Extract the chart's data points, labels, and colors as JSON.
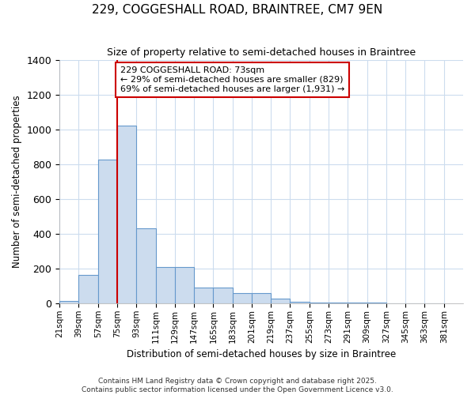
{
  "title": "229, COGGESHALL ROAD, BRAINTREE, CM7 9EN",
  "subtitle": "Size of property relative to semi-detached houses in Braintree",
  "xlabel": "Distribution of semi-detached houses by size in Braintree",
  "ylabel": "Number of semi-detached properties",
  "bin_edges": [
    21,
    39,
    57,
    75,
    93,
    111,
    129,
    147,
    165,
    183,
    201,
    219,
    237,
    255,
    273,
    291,
    309,
    327,
    345,
    363,
    381,
    399
  ],
  "bin_labels": [
    "21sqm",
    "39sqm",
    "57sqm",
    "75sqm",
    "93sqm",
    "111sqm",
    "129sqm",
    "147sqm",
    "165sqm",
    "183sqm",
    "201sqm",
    "219sqm",
    "237sqm",
    "255sqm",
    "273sqm",
    "291sqm",
    "309sqm",
    "327sqm",
    "345sqm",
    "363sqm",
    "381sqm"
  ],
  "bar_heights": [
    15,
    165,
    825,
    1020,
    430,
    210,
    210,
    90,
    90,
    60,
    60,
    25,
    10,
    5,
    5,
    2,
    2,
    1,
    1,
    1,
    0
  ],
  "bar_color": "#ccdcee",
  "bar_edge_color": "#6699cc",
  "plot_bg_color": "#ffffff",
  "fig_bg_color": "#ffffff",
  "grid_color": "#ccdcee",
  "red_line_x": 75,
  "annotation_text": "229 COGGESHALL ROAD: 73sqm\n← 29% of semi-detached houses are smaller (829)\n69% of semi-detached houses are larger (1,931) →",
  "annotation_box_color": "#ffffff",
  "annotation_box_edge_color": "#cc0000",
  "ylim": [
    0,
    1400
  ],
  "yticks": [
    0,
    200,
    400,
    600,
    800,
    1000,
    1200,
    1400
  ],
  "footer_line1": "Contains HM Land Registry data © Crown copyright and database right 2025.",
  "footer_line2": "Contains public sector information licensed under the Open Government Licence v3.0."
}
